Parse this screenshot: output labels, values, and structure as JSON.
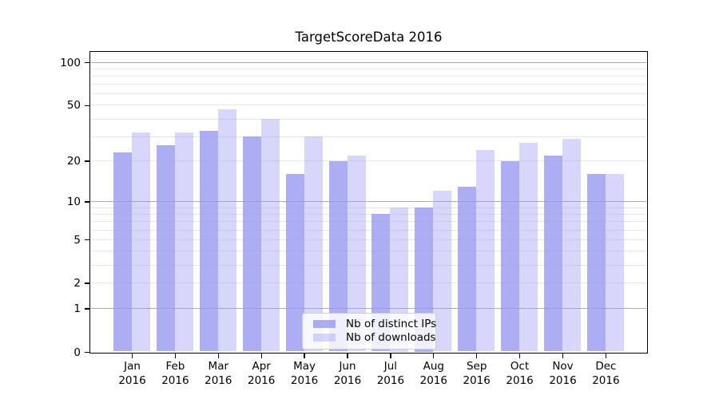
{
  "chart_data": {
    "type": "bar",
    "title": "TargetScoreData 2016",
    "months": [
      "Jan",
      "Feb",
      "Mar",
      "Apr",
      "May",
      "Jun",
      "Jul",
      "Aug",
      "Sep",
      "Oct",
      "Nov",
      "Dec"
    ],
    "year": "2016",
    "categories": [
      "Jan 2016",
      "Feb 2016",
      "Mar 2016",
      "Apr 2016",
      "May 2016",
      "Jun 2016",
      "Jul 2016",
      "Aug 2016",
      "Sep 2016",
      "Oct 2016",
      "Nov 2016",
      "Dec 2016"
    ],
    "series": [
      {
        "name": "Nb of distinct IPs",
        "swatch_color": "#a8a8f3",
        "values": [
          23,
          26,
          33,
          30,
          16,
          20,
          8,
          9,
          13,
          20,
          22,
          16
        ]
      },
      {
        "name": "Nb of downloads",
        "swatch_color": "#d7d7f9",
        "values": [
          32,
          32,
          47,
          40,
          30,
          22,
          9,
          12,
          24,
          27,
          29,
          16
        ]
      }
    ],
    "y_axis": {
      "scale": "log-like: y position proportional to log10(1+value)",
      "tick_labels": [
        "0",
        "1",
        "2",
        "5",
        "10",
        "20",
        "50",
        "100"
      ],
      "tick_values": [
        0,
        1,
        2,
        5,
        10,
        20,
        50,
        100
      ],
      "major_gridlines": [
        1,
        10,
        100
      ],
      "minor_gridlines": [
        2,
        3,
        4,
        5,
        6,
        7,
        8,
        9,
        20,
        30,
        40,
        50,
        60,
        70,
        80,
        90
      ],
      "ylim": [
        0,
        120
      ]
    },
    "xlabel": "",
    "ylabel": "",
    "grid": true,
    "legend": {
      "position": "inside-bottom-center",
      "entries": [
        "Nb of distinct IPs",
        "Nb of downloads"
      ]
    },
    "colors": {
      "bar_dark": "#a8a8f3",
      "bar_light": "#d7d7f9",
      "gridline_major": "#ababab",
      "gridline_minor": "#e7e7e7",
      "spine": "#000000",
      "background": "#ffffff"
    }
  }
}
